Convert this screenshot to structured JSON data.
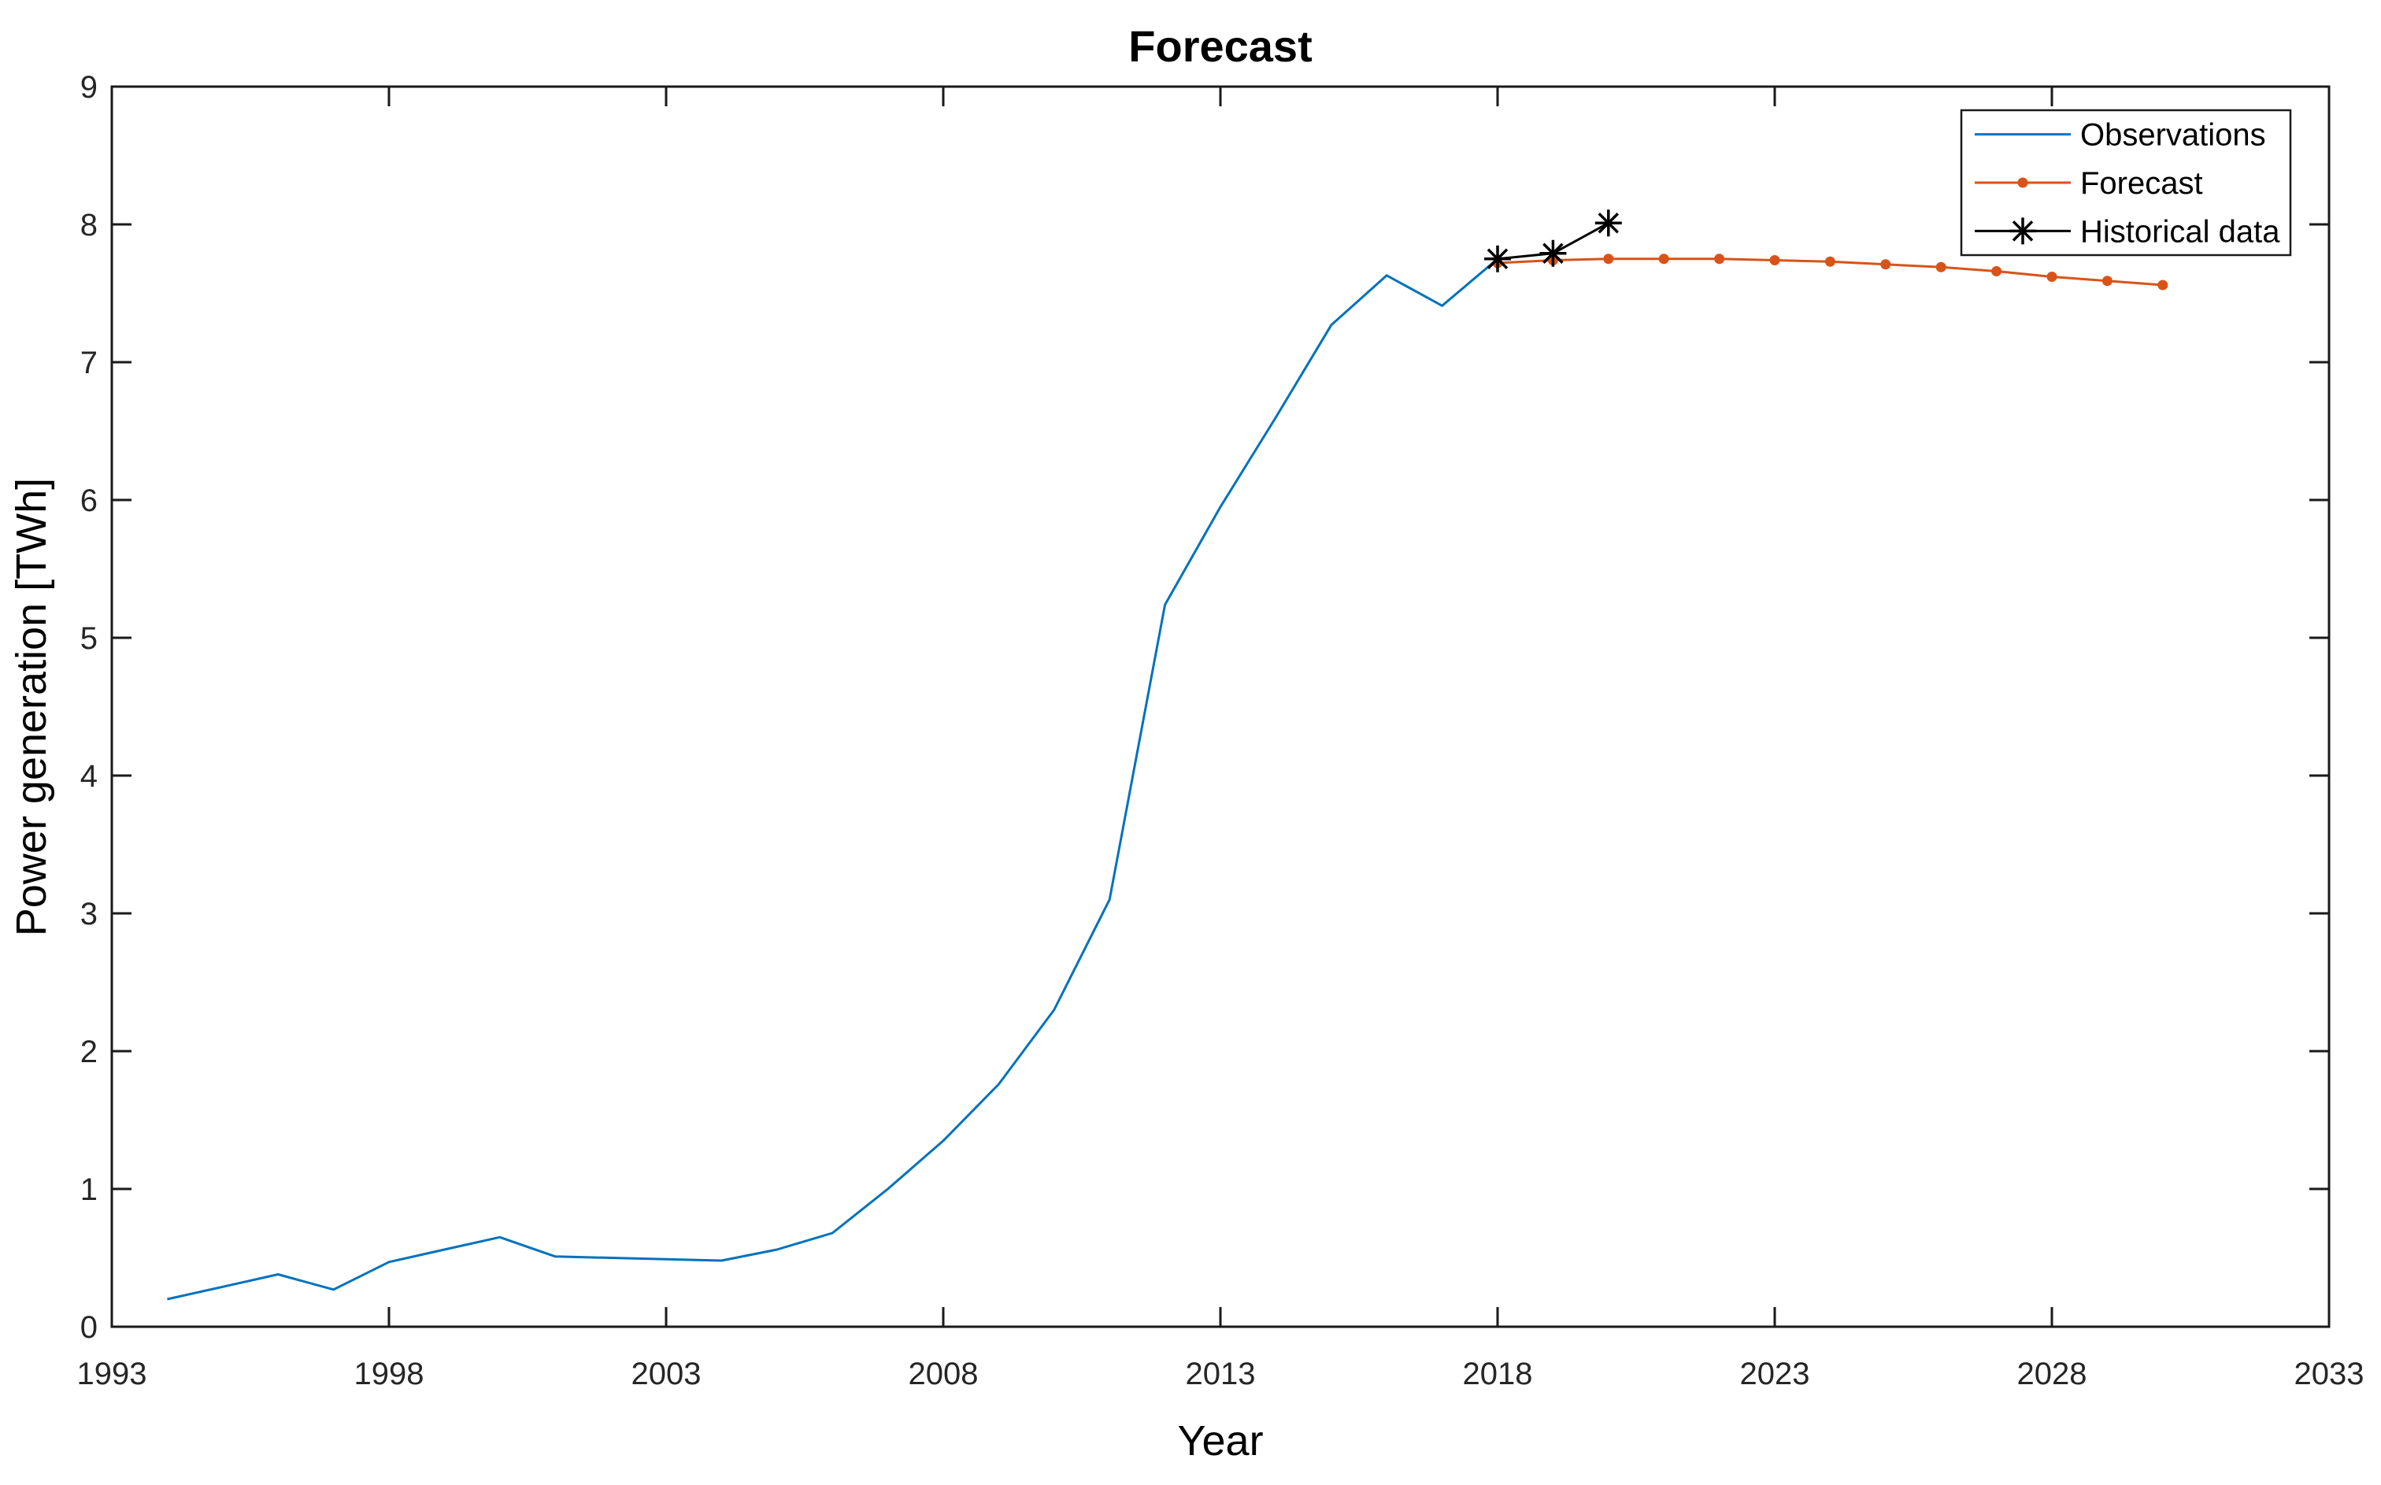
{
  "figure": {
    "title": "Forecast",
    "xlabel": "Year",
    "ylabel": "Power generation [TWh]"
  },
  "chart_data": {
    "type": "line",
    "title": "Forecast",
    "xlabel": "Year",
    "ylabel": "Power generation [TWh]",
    "xlim": [
      1993,
      2033
    ],
    "ylim": [
      0,
      9
    ],
    "x_ticks": [
      1993,
      1998,
      2003,
      2008,
      2013,
      2018,
      2023,
      2028,
      2033
    ],
    "y_ticks": [
      0,
      1,
      2,
      3,
      4,
      5,
      6,
      7,
      8,
      9
    ],
    "grid": false,
    "legend_position": "top-right",
    "axes_color": "#1a1a1a",
    "series": [
      {
        "name": "Observations",
        "color": "#0072BD",
        "marker": "none",
        "x": [
          1994,
          1995,
          1996,
          1997,
          1998,
          1999,
          2000,
          2001,
          2002,
          2003,
          2004,
          2005,
          2006,
          2007,
          2008,
          2009,
          2010,
          2011,
          2012,
          2013,
          2014,
          2015,
          2016,
          2017,
          2018
        ],
        "values": [
          0.2,
          0.29,
          0.38,
          0.27,
          0.47,
          0.56,
          0.65,
          0.51,
          0.5,
          0.49,
          0.48,
          0.56,
          0.68,
          1.0,
          1.35,
          1.76,
          2.3,
          3.1,
          5.24,
          5.95,
          6.6,
          7.27,
          7.63,
          7.41,
          7.75
        ]
      },
      {
        "name": "Forecast",
        "color": "#D95319",
        "marker": "dot",
        "x": [
          2018,
          2019,
          2020,
          2021,
          2022,
          2023,
          2024,
          2025,
          2026,
          2027,
          2028,
          2029,
          2030
        ],
        "values": [
          7.72,
          7.74,
          7.75,
          7.75,
          7.75,
          7.74,
          7.73,
          7.71,
          7.69,
          7.66,
          7.62,
          7.59,
          7.56
        ]
      },
      {
        "name": "Historical data",
        "color": "#000000",
        "marker": "asterisk",
        "x": [
          2018,
          2019,
          2020
        ],
        "values": [
          7.75,
          7.79,
          8.01
        ]
      }
    ]
  }
}
